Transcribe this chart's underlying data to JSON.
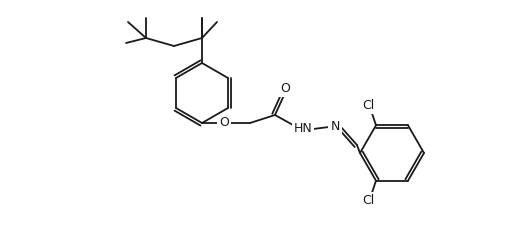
{
  "bg_color": "#ffffff",
  "line_color": "#1a1a1a",
  "lw": 1.3,
  "figsize": [
    5.2,
    2.27
  ],
  "dpi": 100,
  "labels": {
    "O_ether": "O",
    "O_carbonyl": "O",
    "HN": "HN",
    "N": "N",
    "Cl_top": "Cl",
    "Cl_bottom": "Cl"
  }
}
